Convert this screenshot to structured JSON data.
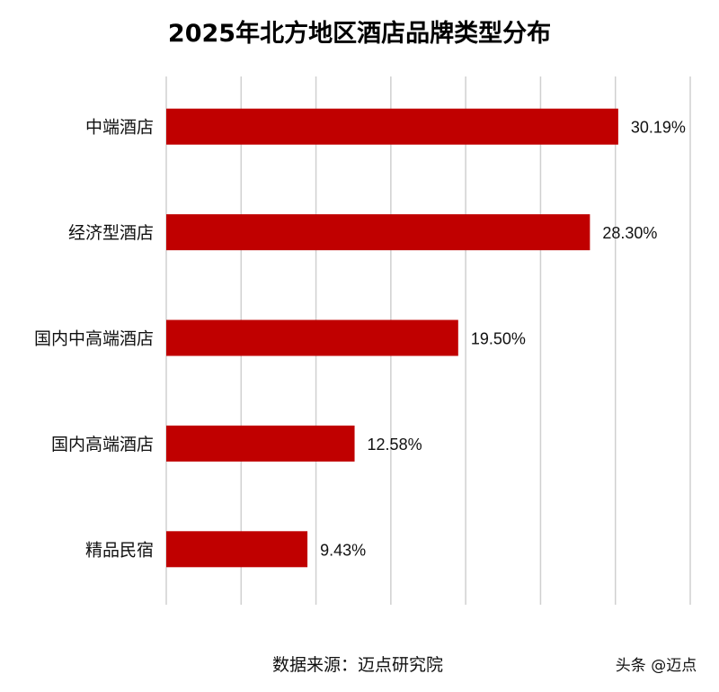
{
  "chart_data": {
    "type": "bar",
    "orientation": "horizontal",
    "title": "2025年北方地区酒店品牌类型分布",
    "categories": [
      "中端酒店",
      "经济型酒店",
      "国内中高端酒店",
      "国内高端酒店",
      "精品民宿"
    ],
    "values": [
      30.19,
      28.3,
      19.5,
      12.58,
      9.43
    ],
    "value_labels": [
      "30.19%",
      "28.30%",
      "19.50%",
      "12.58%",
      "9.43%"
    ],
    "xlim": [
      0,
      35
    ],
    "grid": true,
    "legend": "none",
    "colors": {
      "bar": "#c00000",
      "grid": "#d0d0d0"
    }
  },
  "footer": {
    "source": "数据来源：迈点研究院",
    "credit": "头条 @迈点"
  }
}
